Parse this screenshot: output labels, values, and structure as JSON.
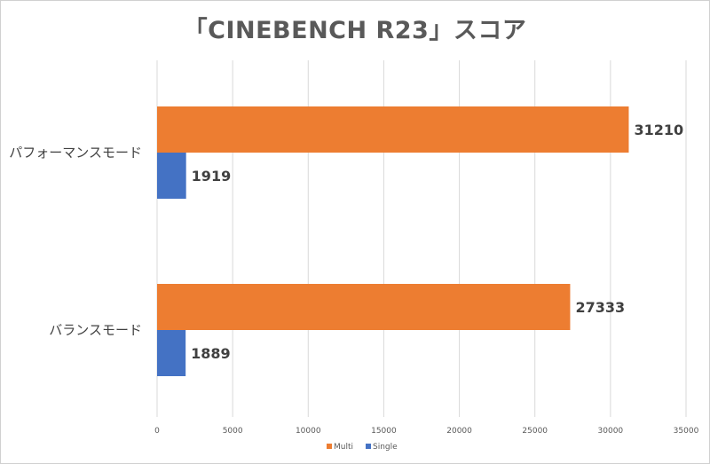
{
  "chart_data": {
    "type": "bar",
    "orientation": "horizontal",
    "title": "「CINEBENCH R23」スコア",
    "categories": [
      "パフォーマンスモード",
      "バランスモード"
    ],
    "series": [
      {
        "name": "Multi",
        "color": "#ED7D31",
        "values": [
          31210,
          27333
        ]
      },
      {
        "name": "Single",
        "color": "#4472C4",
        "values": [
          1919,
          1889
        ]
      }
    ],
    "xlim": [
      0,
      35000
    ],
    "xticks": [
      0,
      5000,
      10000,
      15000,
      20000,
      25000,
      30000,
      35000
    ],
    "grid": true,
    "legend": "bottom"
  }
}
